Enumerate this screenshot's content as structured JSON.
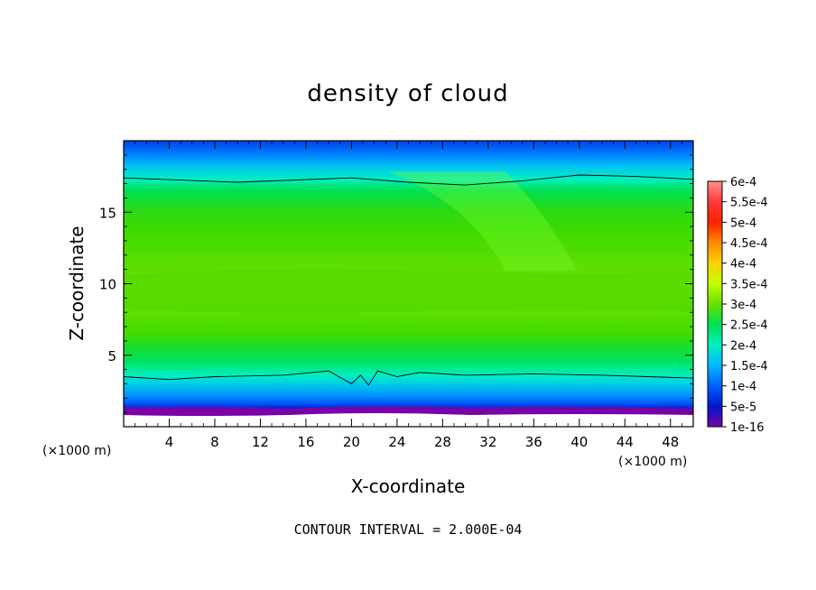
{
  "chart_data": {
    "type": "heatmap",
    "title": "density of cloud",
    "xlabel": "X-coordinate",
    "ylabel": "Z-coordinate",
    "x_unit": "(×1000 m)",
    "y_unit": "(×1000 m)",
    "xlim": [
      0,
      50
    ],
    "ylim": [
      0,
      20
    ],
    "x_ticks": [
      "4",
      "8",
      "12",
      "16",
      "20",
      "24",
      "28",
      "32",
      "36",
      "40",
      "44",
      "48"
    ],
    "y_ticks": [
      "5",
      "10",
      "15"
    ],
    "x_tick_values": [
      4,
      8,
      12,
      16,
      20,
      24,
      28,
      32,
      36,
      40,
      44,
      48
    ],
    "y_tick_values": [
      5,
      10,
      15
    ],
    "colorbar_labels": [
      "6e-4",
      "5.5e-4",
      "5e-4",
      "4.5e-4",
      "4e-4",
      "3.5e-4",
      "3e-4",
      "2.5e-4",
      "2e-4",
      "1.5e-4",
      "1e-4",
      "5e-5",
      "1e-16"
    ],
    "colorbar_colors": [
      "#ff8f8f",
      "#ff3a3a",
      "#ff2000",
      "#ff8a00",
      "#ffd000",
      "#c0ff00",
      "#66e000",
      "#00e050",
      "#00f0c0",
      "#00b8ff",
      "#0060ff",
      "#0018c8",
      "#7a00a8"
    ],
    "annotation": "CONTOUR INTERVAL = 2.000E-04",
    "contour_interval": 0.0002,
    "contour_lines_z": [
      {
        "name": "upper",
        "points": [
          [
            0,
            17.4
          ],
          [
            10,
            17.1
          ],
          [
            20,
            17.4
          ],
          [
            25,
            17.1
          ],
          [
            30,
            16.9
          ],
          [
            35,
            17.2
          ],
          [
            40,
            17.6
          ],
          [
            45,
            17.5
          ],
          [
            50,
            17.3
          ]
        ]
      },
      {
        "name": "lower",
        "points": [
          [
            0,
            3.5
          ],
          [
            4,
            3.3
          ],
          [
            8,
            3.5
          ],
          [
            14,
            3.6
          ],
          [
            18,
            3.9
          ],
          [
            20,
            3.0
          ],
          [
            20.8,
            3.6
          ],
          [
            21.5,
            2.9
          ],
          [
            22.3,
            3.9
          ],
          [
            24,
            3.5
          ],
          [
            26,
            3.8
          ],
          [
            30,
            3.6
          ],
          [
            36,
            3.7
          ],
          [
            42,
            3.6
          ],
          [
            46,
            3.5
          ],
          [
            50,
            3.4
          ]
        ]
      }
    ],
    "profile_z": [
      0,
      0.8,
      1.2,
      1.6,
      2.2,
      3.0,
      3.6,
      4.5,
      5.5,
      6.5,
      8.0,
      10.0,
      12.0,
      13.5,
      15.0,
      16.5,
      17.3,
      18.2,
      19.0,
      20.0
    ],
    "profile_density": [
      0,
      1e-05,
      5e-05,
      9e-05,
      0.00013,
      0.00017,
      0.0002,
      0.00024,
      0.00027,
      0.00031,
      0.00034,
      0.00035,
      0.00033,
      0.00031,
      0.00029,
      0.00025,
      0.0002,
      0.00016,
      0.00012,
      8e-05
    ]
  }
}
